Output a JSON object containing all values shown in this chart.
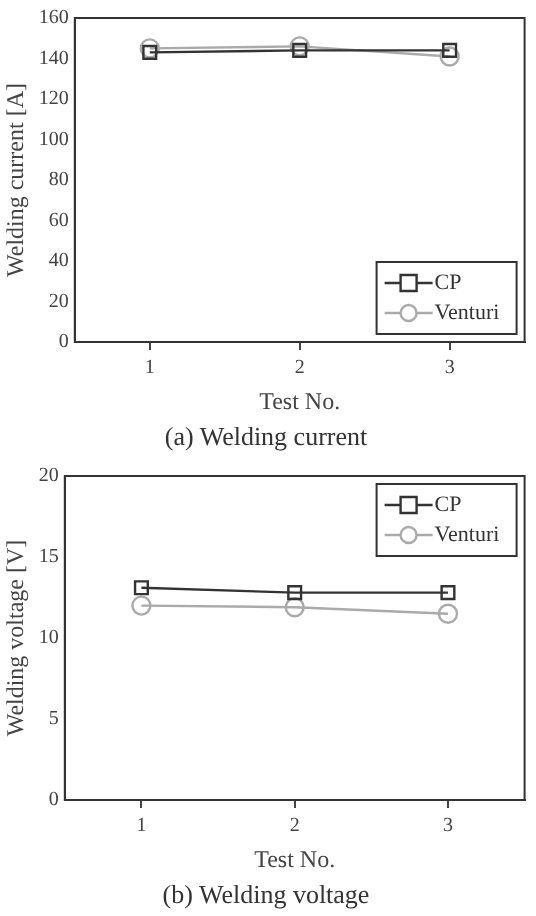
{
  "chart_data": [
    {
      "type": "line",
      "title": "(a) Welding current",
      "xlabel": "Test No.",
      "ylabel": "Welding current [A]",
      "x": [
        1,
        2,
        3
      ],
      "xlim": [
        0.5,
        3.5
      ],
      "xticks": [
        1,
        2,
        3
      ],
      "ylim": [
        0,
        160
      ],
      "yticks": [
        0,
        20,
        40,
        60,
        80,
        100,
        120,
        140,
        160
      ],
      "grid": false,
      "legend": "bottom right",
      "series": [
        {
          "name": "CP",
          "color": "#333333",
          "marker": "square",
          "values": [
            143,
            144,
            144
          ]
        },
        {
          "name": "Venturi",
          "color": "#aaaaaa",
          "marker": "circle",
          "values": [
            145,
            146,
            141
          ]
        }
      ]
    },
    {
      "type": "line",
      "title": "(b) Welding voltage",
      "xlabel": "Test No.",
      "ylabel": "Welding voltage [V]",
      "x": [
        1,
        2,
        3
      ],
      "xlim": [
        0.5,
        3.5
      ],
      "xticks": [
        1,
        2,
        3
      ],
      "ylim": [
        0,
        20
      ],
      "yticks": [
        0,
        5,
        10,
        15,
        20
      ],
      "grid": false,
      "legend": "top right",
      "series": [
        {
          "name": "CP",
          "color": "#333333",
          "marker": "square",
          "values": [
            13.1,
            12.8,
            12.8
          ]
        },
        {
          "name": "Venturi",
          "color": "#aaaaaa",
          "marker": "circle",
          "values": [
            12.0,
            11.9,
            11.5
          ]
        }
      ]
    }
  ]
}
